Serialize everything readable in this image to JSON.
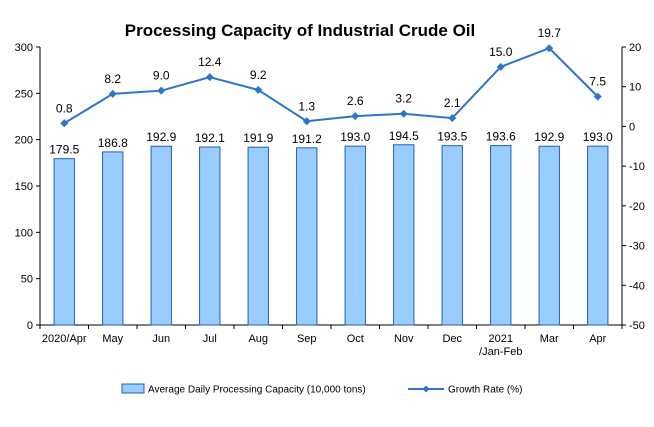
{
  "chart_data": {
    "type": "bar",
    "title": "Processing Capacity of Industrial Crude Oil",
    "categories": [
      "2020/Apr",
      "May",
      "Jun",
      "Jul",
      "Aug",
      "Sep",
      "Oct",
      "Nov",
      "Dec",
      "2021\n/Jan-Feb",
      "Mar",
      "Apr"
    ],
    "series": [
      {
        "name": "Average Daily Processing Capacity (10,000 tons)",
        "type": "bar",
        "axis": "left",
        "values": [
          179.5,
          186.8,
          192.9,
          192.1,
          191.9,
          191.2,
          193.0,
          194.5,
          193.5,
          193.6,
          192.9,
          193.0
        ],
        "labels": [
          "179.5",
          "186.8",
          "192.9",
          "192.1",
          "191.9",
          "191.2",
          "193.0",
          "194.5",
          "193.5",
          "193.6",
          "192.9",
          "193.0"
        ]
      },
      {
        "name": "Growth Rate (%)",
        "type": "line",
        "axis": "right",
        "values": [
          0.8,
          8.2,
          9.0,
          12.4,
          9.2,
          1.3,
          2.6,
          3.2,
          2.1,
          15.0,
          19.7,
          7.5
        ],
        "labels": [
          "0.8",
          "8.2",
          "9.0",
          "12.4",
          "9.2",
          "1.3",
          "2.6",
          "3.2",
          "2.1",
          "15.0",
          "19.7",
          "7.5"
        ]
      }
    ],
    "ylim_left": [
      0,
      300
    ],
    "yticks_left": [
      0,
      50,
      100,
      150,
      200,
      250,
      300
    ],
    "ylim_right": [
      -50,
      20
    ],
    "yticks_right": [
      -50,
      -40,
      -30,
      -20,
      -10,
      0,
      10,
      20
    ],
    "grid": false,
    "legend_position": "bottom",
    "colors": {
      "bar_fill": "#99ccff",
      "bar_stroke": "#1f5fbf",
      "line": "#2e74c9",
      "marker": "#2e74c9"
    }
  }
}
